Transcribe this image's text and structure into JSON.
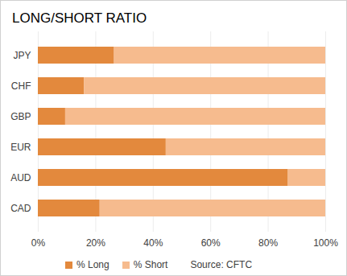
{
  "chart_data": {
    "type": "bar",
    "title": "LONG/SHORT RATIO",
    "orientation": "horizontal",
    "stacked": true,
    "grid": true,
    "legend": "bottom",
    "categories": [
      "JPY",
      "CHF",
      "GBP",
      "EUR",
      "AUD",
      "CAD"
    ],
    "series": [
      {
        "name": "% Long",
        "color": "#e3893d",
        "values": [
          26.5,
          16,
          9.5,
          44.5,
          87,
          21.5
        ]
      },
      {
        "name": "% Short",
        "color": "#f6bb8e",
        "values": [
          73.5,
          84,
          90.5,
          55.5,
          13,
          78.5
        ]
      }
    ],
    "xlim": [
      0,
      100
    ],
    "xticks": [
      {
        "value": 0,
        "label": "0%"
      },
      {
        "value": 20,
        "label": "20%"
      },
      {
        "value": 40,
        "label": "40%"
      },
      {
        "value": 60,
        "label": "60%"
      },
      {
        "value": 80,
        "label": "80%"
      },
      {
        "value": 100,
        "label": "100%"
      }
    ],
    "annotations": [
      "Source: CFTC"
    ]
  }
}
